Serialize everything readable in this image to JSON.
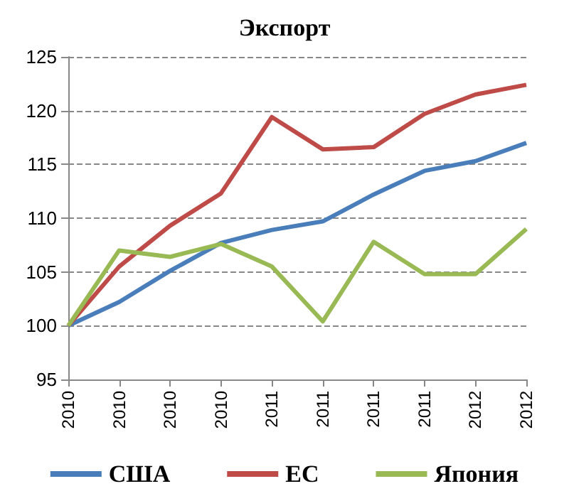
{
  "chart_data": {
    "type": "line",
    "title": "Экспорт",
    "categories": [
      "2010",
      "2010",
      "2010",
      "2010",
      "2011",
      "2011",
      "2011",
      "2011",
      "2012",
      "2012"
    ],
    "series": [
      {
        "name": "США",
        "color": "#4a7ebb",
        "values": [
          100,
          102.2,
          105.1,
          107.7,
          108.9,
          109.7,
          112.2,
          114.4,
          115.3,
          117.0
        ]
      },
      {
        "name": "ЕС",
        "color": "#be4b48",
        "values": [
          100,
          105.5,
          109.3,
          112.3,
          119.4,
          116.4,
          116.6,
          119.7,
          121.5,
          122.4
        ]
      },
      {
        "name": "Япония",
        "color": "#98b954",
        "values": [
          100,
          107.0,
          106.4,
          107.6,
          105.5,
          100.4,
          107.8,
          104.8,
          104.8,
          109.0
        ]
      }
    ],
    "ylim": [
      95,
      125
    ],
    "yticks": [
      95,
      100,
      105,
      110,
      115,
      120,
      125
    ],
    "grid": "y",
    "legend": "bottom",
    "marker": "none",
    "line_style": "solid"
  }
}
